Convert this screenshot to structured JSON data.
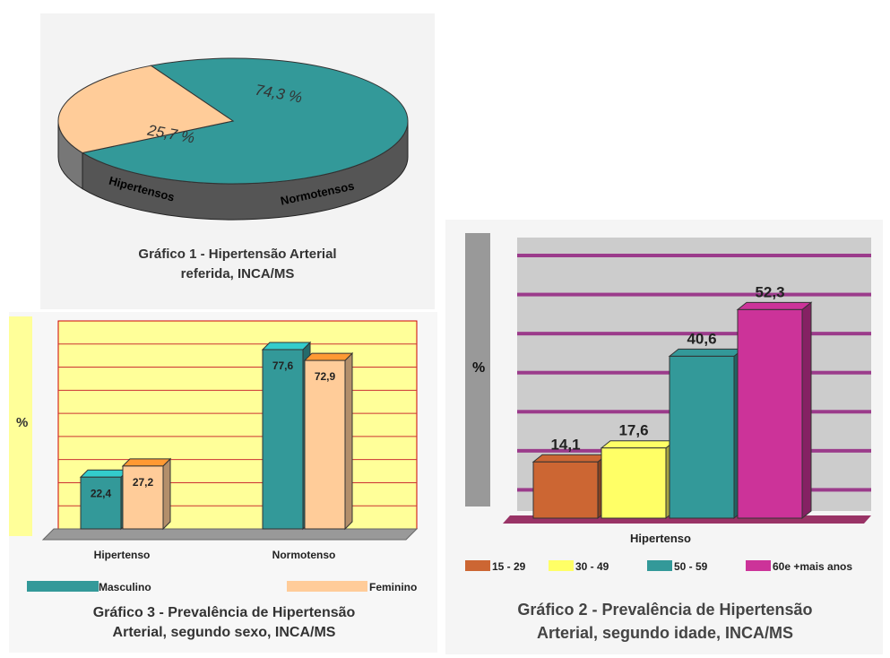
{
  "chart_data": [
    {
      "id": "grafico1",
      "type": "pie",
      "title": "Gráfico 1 - Hipertensão Arterial referida, INCA/MS",
      "title_lines": [
        "Gráfico 1 - Hipertensão Arterial",
        "referida, INCA/MS"
      ],
      "slices": [
        {
          "label": "Normotensos",
          "value": 74.3,
          "value_label": "74,3 %",
          "color": "#339999"
        },
        {
          "label": "Hipertensos",
          "value": 25.7,
          "value_label": "25,7 %",
          "color": "#ffcc99"
        }
      ]
    },
    {
      "id": "grafico3",
      "type": "bar",
      "title": "Gráfico 3 - Prevalência de Hipertensão Arterial, segundo sexo, INCA/MS",
      "title_lines": [
        "Gráfico 3 - Prevalência de Hipertensão",
        "Arterial, segundo sexo, INCA/MS"
      ],
      "ylabel": "%",
      "categories": [
        "Hipertenso",
        "Normotenso"
      ],
      "ylim": [
        0,
        90
      ],
      "grid": true,
      "legend_position": "bottom",
      "series": [
        {
          "name": "Masculino",
          "values": [
            22.4,
            77.6
          ],
          "value_labels": [
            "22,4",
            "77,6"
          ],
          "color": "#339999"
        },
        {
          "name": "Feminino",
          "values": [
            27.2,
            72.9
          ],
          "value_labels": [
            "27,2",
            "72,9"
          ],
          "color": "#ffcc99"
        }
      ]
    },
    {
      "id": "grafico2",
      "type": "bar",
      "title": "Gráfico 2 - Prevalência de Hipertensão Arterial, segundo idade, INCA/MS",
      "title_lines": [
        "Gráfico 2 - Prevalência de Hipertensão",
        "Arterial, segundo idade, INCA/MS"
      ],
      "ylabel": "%",
      "categories": [
        "Hipertenso"
      ],
      "ylim": [
        0,
        60
      ],
      "grid": true,
      "legend_position": "bottom",
      "series": [
        {
          "name": "15 - 29",
          "values": [
            14.1
          ],
          "value_labels": [
            "14,1"
          ],
          "color": "#cc6633"
        },
        {
          "name": "30 - 49",
          "values": [
            17.6
          ],
          "value_labels": [
            "17,6"
          ],
          "color": "#ffff66"
        },
        {
          "name": "50 - 59",
          "values": [
            40.6
          ],
          "value_labels": [
            "40,6"
          ],
          "color": "#339999"
        },
        {
          "name": "60e +mais anos",
          "values": [
            52.3
          ],
          "value_labels": [
            "52,3"
          ],
          "color": "#cc3399"
        }
      ]
    }
  ]
}
